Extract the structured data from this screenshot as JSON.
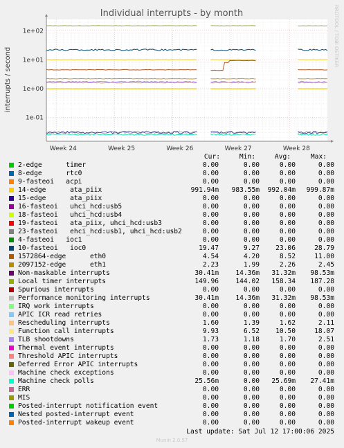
{
  "chart_data": {
    "type": "line",
    "title": "Individual interrupts - by month",
    "ylabel": "interrupts / second",
    "side_label": "RRDTOOL / TOBI OETIKER",
    "y_scale": "log",
    "ylim": [
      0.015,
      250
    ],
    "yticks": [
      {
        "v": 100,
        "label": "1e+02"
      },
      {
        "v": 10,
        "label": "1e+01"
      },
      {
        "v": 1,
        "label": "1e+00"
      },
      {
        "v": 0.1,
        "label": "1e-01"
      }
    ],
    "xticks": [
      "Week 24",
      "Week 25",
      "Week 26",
      "Week 27",
      "Week 28"
    ],
    "grid": true,
    "gaps": [
      {
        "from": 0.535,
        "to": 0.585
      },
      {
        "from": 0.585,
        "to": 0.895
      }
    ],
    "series": [
      {
        "name": "Local timer interrupts",
        "color": "#8fa617",
        "level": 150,
        "jitter": 0.02
      },
      {
        "name": "10-fasteoi ioc0",
        "color": "#054a6e",
        "level": 22,
        "jitter": 0.06
      },
      {
        "name": "Function call interrupts",
        "color": "#e8c74a",
        "level": 9.93,
        "jitter": 0.02
      },
      {
        "name": "1572864-edge eth0",
        "color": "#b0561b",
        "level": 4.5,
        "jitter": 0.02,
        "segments": [
          {
            "from": 0.585,
            "to": 0.633,
            "value": 4.3
          },
          {
            "from": 0.633,
            "to": 0.65,
            "value": 8
          },
          {
            "from": 0.65,
            "to": 0.895,
            "value": 9.4
          }
        ]
      },
      {
        "name": "2097152-edge eth1",
        "color": "#d09a27",
        "level": 2.2,
        "jitter": 0.02
      },
      {
        "name": "TLB shootdowns",
        "color": "#aa7ff0",
        "level": 1.72,
        "jitter": 0.05
      },
      {
        "name": "Rescheduling interrupts",
        "color": "#f39c54",
        "level": 1.6,
        "jitter": 0.03
      },
      {
        "name": "14-edge ata_piix",
        "color": "#e0b50a",
        "level": 0.99,
        "jitter": 0.005
      },
      {
        "name": "Machine check polls",
        "color": "#13e6b7",
        "level": 0.0256,
        "jitter": 0.05
      },
      {
        "name": "Performance monitoring interrupts",
        "color": "#aaaaaa",
        "level": 0.0304,
        "jitter": 0.1
      },
      {
        "name": "Non-maskable interrupts",
        "color": "#4c4c9c",
        "level": 0.0302,
        "jitter": 0.1
      }
    ],
    "legend": {
      "headers": [
        "Cur:",
        "Min:",
        "Avg:",
        "Max:"
      ],
      "rows": [
        {
          "label": "2-edge      timer",
          "color": "#00cc00",
          "cur": "0.00",
          "min": "0.00",
          "avg": "0.00",
          "max": "0.00"
        },
        {
          "label": "8-edge      rtc0",
          "color": "#0066b3",
          "cur": "0.00",
          "min": "0.00",
          "avg": "0.00",
          "max": "0.00"
        },
        {
          "label": "9-fasteoi   acpi",
          "color": "#ff8000",
          "cur": "0.00",
          "min": "0.00",
          "avg": "0.00",
          "max": "0.00"
        },
        {
          "label": "14-edge      ata_piix",
          "color": "#ffcc00",
          "cur": "991.94m",
          "min": "983.55m",
          "avg": "992.04m",
          "max": "999.87m"
        },
        {
          "label": "15-edge      ata_piix",
          "color": "#330099",
          "cur": "0.00",
          "min": "0.00",
          "avg": "0.00",
          "max": "0.00"
        },
        {
          "label": "16-fasteoi   uhci_hcd:usb5",
          "color": "#990099",
          "cur": "0.00",
          "min": "0.00",
          "avg": "0.00",
          "max": "0.00"
        },
        {
          "label": "18-fasteoi   uhci_hcd:usb4",
          "color": "#ccff00",
          "cur": "0.00",
          "min": "0.00",
          "avg": "0.00",
          "max": "0.00"
        },
        {
          "label": "19-fasteoi   ata_piix, uhci_hcd:usb3",
          "color": "#ff0000",
          "cur": "0.00",
          "min": "0.00",
          "avg": "0.00",
          "max": "0.00"
        },
        {
          "label": "23-fasteoi   ehci_hcd:usb1, uhci_hcd:usb2",
          "color": "#808080",
          "cur": "0.00",
          "min": "0.00",
          "avg": "0.00",
          "max": "0.00"
        },
        {
          "label": "4-fasteoi   ioc1",
          "color": "#008f00",
          "cur": "0.00",
          "min": "0.00",
          "avg": "0.00",
          "max": "0.00"
        },
        {
          "label": "10-fasteoi   ioc0",
          "color": "#00487d",
          "cur": "19.47",
          "min": "9.27",
          "avg": "23.06",
          "max": "28.79"
        },
        {
          "label": "1572864-edge      eth0",
          "color": "#b35a00",
          "cur": "4.54",
          "min": "4.20",
          "avg": "8.52",
          "max": "11.00"
        },
        {
          "label": "2097152-edge      eth1",
          "color": "#b38f00",
          "cur": "2.23",
          "min": "1.99",
          "avg": "2.26",
          "max": "2.45"
        },
        {
          "label": "Non-maskable interrupts",
          "color": "#6b006b",
          "cur": "30.41m",
          "min": "14.36m",
          "avg": "31.32m",
          "max": "98.53m"
        },
        {
          "label": "Local timer interrupts",
          "color": "#8fb300",
          "cur": "149.96",
          "min": "144.02",
          "avg": "158.34",
          "max": "187.28"
        },
        {
          "label": "Spurious interrupts",
          "color": "#b30000",
          "cur": "0.00",
          "min": "0.00",
          "avg": "0.00",
          "max": "0.00"
        },
        {
          "label": "Performance monitoring interrupts",
          "color": "#bebebe",
          "cur": "30.41m",
          "min": "14.36m",
          "avg": "31.32m",
          "max": "98.53m"
        },
        {
          "label": "IRQ work interrupts",
          "color": "#80ff80",
          "cur": "0.00",
          "min": "0.00",
          "avg": "0.00",
          "max": "0.00"
        },
        {
          "label": "APIC ICR read retries",
          "color": "#80c9ff",
          "cur": "0.00",
          "min": "0.00",
          "avg": "0.00",
          "max": "0.00"
        },
        {
          "label": "Rescheduling interrupts",
          "color": "#ffc080",
          "cur": "1.60",
          "min": "1.39",
          "avg": "1.62",
          "max": "2.11"
        },
        {
          "label": "Function call interrupts",
          "color": "#ffe680",
          "cur": "9.93",
          "min": "6.52",
          "avg": "10.50",
          "max": "18.07"
        },
        {
          "label": "TLB shootdowns",
          "color": "#aa80ff",
          "cur": "1.73",
          "min": "1.18",
          "avg": "1.70",
          "max": "2.51"
        },
        {
          "label": "Thermal event interrupts",
          "color": "#ee00cc",
          "cur": "0.00",
          "min": "0.00",
          "avg": "0.00",
          "max": "0.00"
        },
        {
          "label": "Threshold APIC interrupts",
          "color": "#ff8080",
          "cur": "0.00",
          "min": "0.00",
          "avg": "0.00",
          "max": "0.00"
        },
        {
          "label": "Deferred Error APIC interrupts",
          "color": "#666600",
          "cur": "0.00",
          "min": "0.00",
          "avg": "0.00",
          "max": "0.00"
        },
        {
          "label": "Machine check exceptions",
          "color": "#ffbfff",
          "cur": "0.00",
          "min": "0.00",
          "avg": "0.00",
          "max": "0.00"
        },
        {
          "label": "Machine check polls",
          "color": "#00ffcc",
          "cur": "25.56m",
          "min": "0.00",
          "avg": "25.69m",
          "max": "27.41m"
        },
        {
          "label": "ERR",
          "color": "#cc6699",
          "cur": "0.00",
          "min": "0.00",
          "avg": "0.00",
          "max": "0.00"
        },
        {
          "label": "MIS",
          "color": "#999900",
          "cur": "0.00",
          "min": "0.00",
          "avg": "0.00",
          "max": "0.00"
        },
        {
          "label": "Posted-interrupt notification event",
          "color": "#00cc00",
          "cur": "0.00",
          "min": "0.00",
          "avg": "0.00",
          "max": "0.00"
        },
        {
          "label": "Nested posted-interrupt event",
          "color": "#0066b3",
          "cur": "0.00",
          "min": "0.00",
          "avg": "0.00",
          "max": "0.00"
        },
        {
          "label": "Posted-interrupt wakeup event",
          "color": "#ff8000",
          "cur": "0.00",
          "min": "0.00",
          "avg": "0.00",
          "max": "0.00"
        }
      ]
    }
  },
  "footer": {
    "last_update": "Last update: Sat Jul 12 17:00:06 2025",
    "munin": "Munin 2.0.57"
  }
}
